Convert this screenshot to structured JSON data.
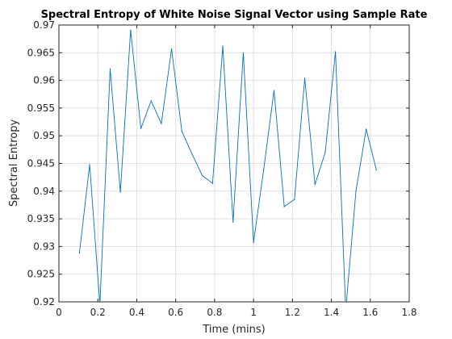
{
  "chart_data": {
    "type": "line",
    "title": "Spectral Entropy of White Noise Signal Vector using Sample Rate",
    "xlabel": "Time (mins)",
    "ylabel": "Spectral Entropy",
    "xlim": [
      0,
      1.8
    ],
    "ylim": [
      0.92,
      0.97
    ],
    "xticks": [
      0,
      0.2,
      0.4,
      0.6,
      0.8,
      1,
      1.2,
      1.4,
      1.6,
      1.8
    ],
    "xtick_labels": [
      "0",
      "0.2",
      "0.4",
      "0.6",
      "0.8",
      "1",
      "1.2",
      "1.4",
      "1.6",
      "1.8"
    ],
    "yticks": [
      0.92,
      0.925,
      0.93,
      0.935,
      0.94,
      0.945,
      0.95,
      0.955,
      0.96,
      0.965,
      0.97
    ],
    "ytick_labels": [
      "0.92",
      "0.925",
      "0.93",
      "0.935",
      "0.94",
      "0.945",
      "0.95",
      "0.955",
      "0.96",
      "0.965",
      "0.97"
    ],
    "grid": true,
    "series_color": "#0072bd",
    "x": [
      0.1053,
      0.1579,
      0.2105,
      0.2632,
      0.3158,
      0.3684,
      0.4211,
      0.4737,
      0.5263,
      0.5789,
      0.6316,
      0.6842,
      0.7368,
      0.7895,
      0.8421,
      0.8947,
      0.9474,
      1.0,
      1.0526,
      1.1053,
      1.1579,
      1.2105,
      1.2632,
      1.3158,
      1.3684,
      1.4211,
      1.4737,
      1.5263,
      1.5789,
      1.6316
    ],
    "y": [
      0.9288,
      0.9448,
      0.9195,
      0.9621,
      0.9398,
      0.9691,
      0.9513,
      0.9563,
      0.9522,
      0.9657,
      0.9508,
      0.9467,
      0.9428,
      0.9414,
      0.9662,
      0.9344,
      0.965,
      0.9307,
      0.944,
      0.9582,
      0.9372,
      0.9385,
      0.9604,
      0.9412,
      0.947,
      0.9652,
      0.9185,
      0.94,
      0.9512,
      0.9438
    ]
  }
}
